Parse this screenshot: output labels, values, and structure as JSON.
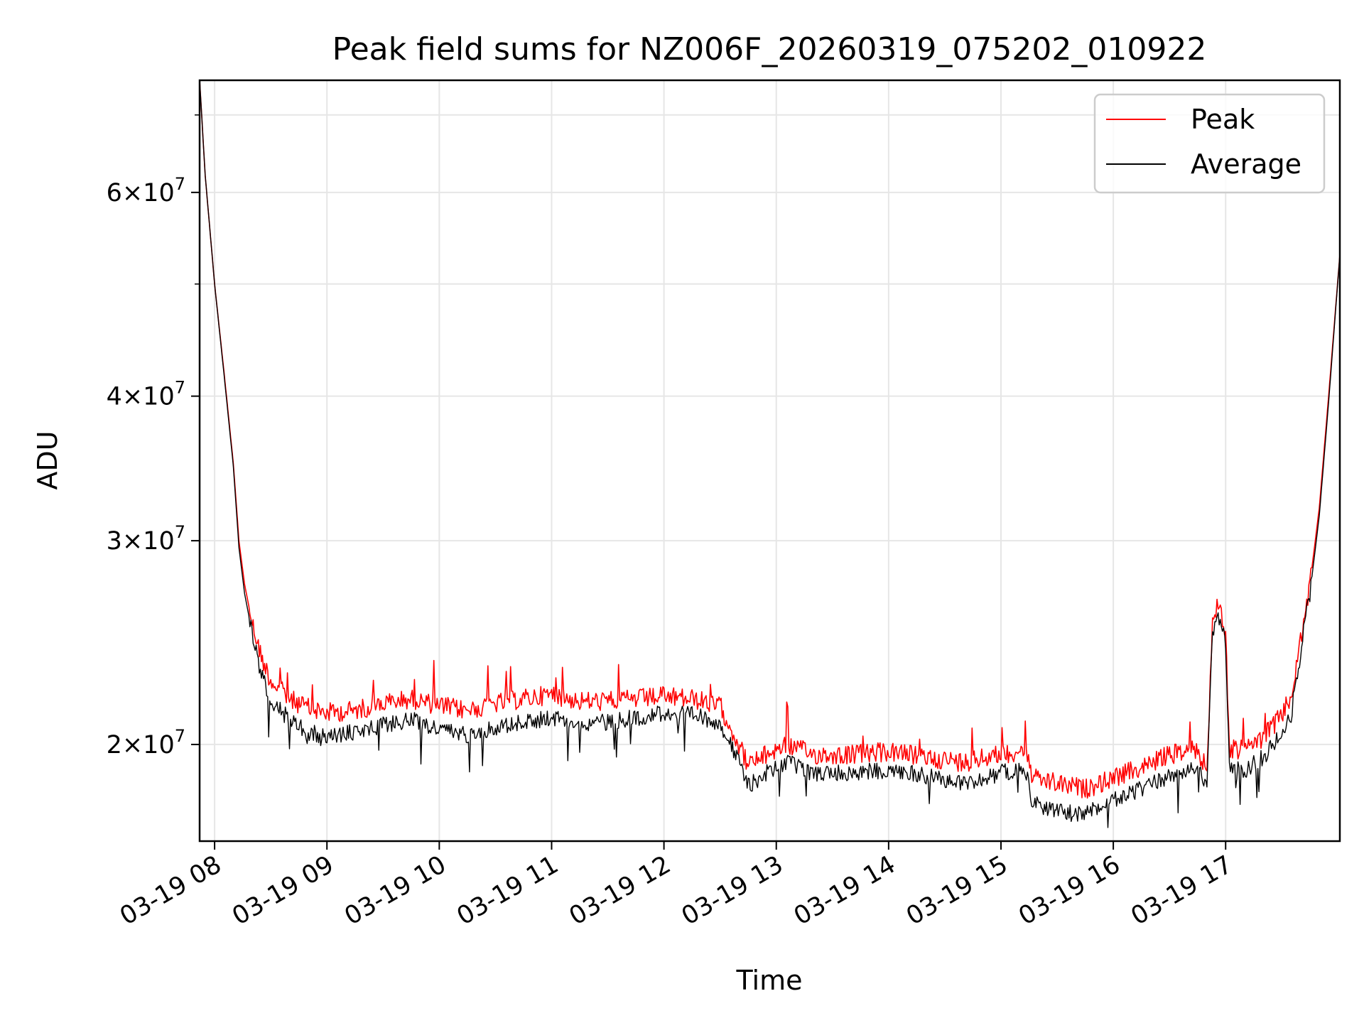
{
  "chart_data": {
    "type": "line",
    "title": "Peak field sums for NZ006F_20260319_075202_010922",
    "xlabel": "Time",
    "ylabel": "ADU",
    "x_type": "time",
    "xlim": [
      "2026-03-19 07:52",
      "2026-03-19 18:01"
    ],
    "ylim": [
      16500000,
      75000000
    ],
    "y_scale": "log",
    "grid": true,
    "legend_position": "top-right",
    "x_ticks": [
      {
        "value": "2026-03-19 08:00",
        "label": "03-19 08"
      },
      {
        "value": "2026-03-19 09:00",
        "label": "03-19 09"
      },
      {
        "value": "2026-03-19 10:00",
        "label": "03-19 10"
      },
      {
        "value": "2026-03-19 11:00",
        "label": "03-19 11"
      },
      {
        "value": "2026-03-19 12:00",
        "label": "03-19 12"
      },
      {
        "value": "2026-03-19 13:00",
        "label": "03-19 13"
      },
      {
        "value": "2026-03-19 14:00",
        "label": "03-19 14"
      },
      {
        "value": "2026-03-19 15:00",
        "label": "03-19 15"
      },
      {
        "value": "2026-03-19 16:00",
        "label": "03-19 16"
      },
      {
        "value": "2026-03-19 17:00",
        "label": "03-19 17"
      }
    ],
    "y_ticks": [
      {
        "value": 20000000,
        "mant": "2",
        "exp": "7"
      },
      {
        "value": 30000000,
        "mant": "3",
        "exp": "7"
      },
      {
        "value": 40000000,
        "mant": "4",
        "exp": "7"
      },
      {
        "value": 60000000,
        "mant": "6",
        "exp": "7"
      }
    ],
    "y_minor_ticks": [
      50000000,
      70000000
    ],
    "series": [
      {
        "name": "Peak",
        "color": "#ff0000",
        "points": [
          [
            "2026-03-19 07:52",
            75000000
          ],
          [
            "2026-03-19 07:55",
            62000000
          ],
          [
            "2026-03-19 08:00",
            50000000
          ],
          [
            "2026-03-19 08:05",
            42000000
          ],
          [
            "2026-03-19 08:10",
            35000000
          ],
          [
            "2026-03-19 08:13",
            30000000
          ],
          [
            "2026-03-19 08:16",
            27500000
          ],
          [
            "2026-03-19 08:20",
            25500000
          ],
          [
            "2026-03-19 08:25",
            23800000
          ],
          [
            "2026-03-19 08:30",
            22700000
          ],
          [
            "2026-03-19 08:40",
            21900000
          ],
          [
            "2026-03-19 08:50",
            21500000
          ],
          [
            "2026-03-19 09:00",
            21300000
          ],
          [
            "2026-03-19 09:15",
            21400000
          ],
          [
            "2026-03-19 09:30",
            21700000
          ],
          [
            "2026-03-19 09:45",
            21900000
          ],
          [
            "2026-03-19 10:00",
            21600000
          ],
          [
            "2026-03-19 10:15",
            21400000
          ],
          [
            "2026-03-19 10:30",
            21700000
          ],
          [
            "2026-03-19 10:45",
            21900000
          ],
          [
            "2026-03-19 11:00",
            22100000
          ],
          [
            "2026-03-19 11:15",
            21800000
          ],
          [
            "2026-03-19 11:30",
            21800000
          ],
          [
            "2026-03-19 11:45",
            21900000
          ],
          [
            "2026-03-19 12:00",
            22000000
          ],
          [
            "2026-03-19 12:15",
            21900000
          ],
          [
            "2026-03-19 12:30",
            21600000
          ],
          [
            "2026-03-19 12:40",
            20000000
          ],
          [
            "2026-03-19 12:45",
            19200000
          ],
          [
            "2026-03-19 12:55",
            19600000
          ],
          [
            "2026-03-19 13:05",
            20000000
          ],
          [
            "2026-03-19 13:20",
            19600000
          ],
          [
            "2026-03-19 13:40",
            19600000
          ],
          [
            "2026-03-19 14:00",
            19700000
          ],
          [
            "2026-03-19 14:20",
            19500000
          ],
          [
            "2026-03-19 14:40",
            19300000
          ],
          [
            "2026-03-19 15:00",
            19600000
          ],
          [
            "2026-03-19 15:13",
            19800000
          ],
          [
            "2026-03-19 15:17",
            18700000
          ],
          [
            "2026-03-19 15:30",
            18500000
          ],
          [
            "2026-03-19 15:45",
            18300000
          ],
          [
            "2026-03-19 16:00",
            18700000
          ],
          [
            "2026-03-19 16:15",
            19100000
          ],
          [
            "2026-03-19 16:30",
            19600000
          ],
          [
            "2026-03-19 16:45",
            19800000
          ],
          [
            "2026-03-19 16:50",
            19000000
          ],
          [
            "2026-03-19 16:53",
            25500000
          ],
          [
            "2026-03-19 16:56",
            26500000
          ],
          [
            "2026-03-19 17:00",
            25000000
          ],
          [
            "2026-03-19 17:02",
            19800000
          ],
          [
            "2026-03-19 17:10",
            19800000
          ],
          [
            "2026-03-19 17:20",
            20300000
          ],
          [
            "2026-03-19 17:30",
            21200000
          ],
          [
            "2026-03-19 17:35",
            22000000
          ],
          [
            "2026-03-19 17:40",
            24500000
          ],
          [
            "2026-03-19 17:45",
            27500000
          ],
          [
            "2026-03-19 17:50",
            32000000
          ],
          [
            "2026-03-19 17:55",
            40000000
          ],
          [
            "2026-03-19 18:01",
            53000000
          ]
        ]
      },
      {
        "name": "Average",
        "color": "#000000",
        "points": [
          [
            "2026-03-19 07:52",
            75000000
          ],
          [
            "2026-03-19 07:55",
            62000000
          ],
          [
            "2026-03-19 08:00",
            50000000
          ],
          [
            "2026-03-19 08:05",
            41800000
          ],
          [
            "2026-03-19 08:10",
            34800000
          ],
          [
            "2026-03-19 08:13",
            29600000
          ],
          [
            "2026-03-19 08:16",
            27000000
          ],
          [
            "2026-03-19 08:20",
            25000000
          ],
          [
            "2026-03-19 08:25",
            23000000
          ],
          [
            "2026-03-19 08:30",
            21900000
          ],
          [
            "2026-03-19 08:40",
            21000000
          ],
          [
            "2026-03-19 08:50",
            20500000
          ],
          [
            "2026-03-19 09:00",
            20300000
          ],
          [
            "2026-03-19 09:15",
            20500000
          ],
          [
            "2026-03-19 09:30",
            20800000
          ],
          [
            "2026-03-19 09:45",
            21000000
          ],
          [
            "2026-03-19 10:00",
            20600000
          ],
          [
            "2026-03-19 10:15",
            20400000
          ],
          [
            "2026-03-19 10:30",
            20700000
          ],
          [
            "2026-03-19 10:45",
            20900000
          ],
          [
            "2026-03-19 11:00",
            21100000
          ],
          [
            "2026-03-19 11:15",
            20900000
          ],
          [
            "2026-03-19 11:30",
            20900000
          ],
          [
            "2026-03-19 11:45",
            21100000
          ],
          [
            "2026-03-19 12:00",
            21300000
          ],
          [
            "2026-03-19 12:15",
            21200000
          ],
          [
            "2026-03-19 12:30",
            20900000
          ],
          [
            "2026-03-19 12:40",
            19300000
          ],
          [
            "2026-03-19 12:45",
            18400000
          ],
          [
            "2026-03-19 12:55",
            18900000
          ],
          [
            "2026-03-19 13:05",
            19300000
          ],
          [
            "2026-03-19 13:20",
            18900000
          ],
          [
            "2026-03-19 13:40",
            18900000
          ],
          [
            "2026-03-19 14:00",
            19000000
          ],
          [
            "2026-03-19 14:20",
            18800000
          ],
          [
            "2026-03-19 14:40",
            18500000
          ],
          [
            "2026-03-19 15:00",
            18900000
          ],
          [
            "2026-03-19 15:13",
            19100000
          ],
          [
            "2026-03-19 15:17",
            17800000
          ],
          [
            "2026-03-19 15:30",
            17500000
          ],
          [
            "2026-03-19 15:45",
            17400000
          ],
          [
            "2026-03-19 16:00",
            17900000
          ],
          [
            "2026-03-19 16:15",
            18300000
          ],
          [
            "2026-03-19 16:30",
            18800000
          ],
          [
            "2026-03-19 16:45",
            19100000
          ],
          [
            "2026-03-19 16:50",
            18300000
          ],
          [
            "2026-03-19 16:53",
            25000000
          ],
          [
            "2026-03-19 16:56",
            26000000
          ],
          [
            "2026-03-19 17:00",
            24500000
          ],
          [
            "2026-03-19 17:02",
            19000000
          ],
          [
            "2026-03-19 17:10",
            19000000
          ],
          [
            "2026-03-19 17:20",
            19500000
          ],
          [
            "2026-03-19 17:30",
            20400000
          ],
          [
            "2026-03-19 17:35",
            21200000
          ],
          [
            "2026-03-19 17:40",
            24000000
          ],
          [
            "2026-03-19 17:45",
            27000000
          ],
          [
            "2026-03-19 17:50",
            31500000
          ],
          [
            "2026-03-19 17:55",
            39500000
          ],
          [
            "2026-03-19 18:01",
            53000000
          ]
        ]
      }
    ]
  }
}
